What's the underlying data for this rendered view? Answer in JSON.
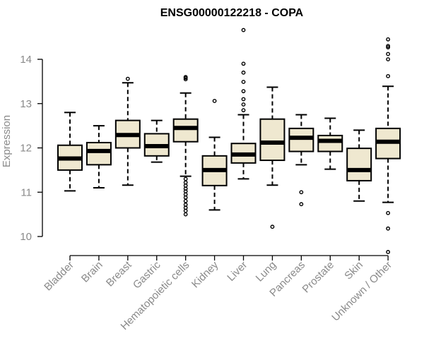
{
  "chart_data": {
    "type": "boxplot",
    "title": "ENSG00000122218 - COPA",
    "xlabel": "",
    "ylabel": "Expression",
    "ylim": [
      9.6,
      14.7
    ],
    "yticks": [
      "10",
      "11",
      "12",
      "13",
      "14"
    ],
    "grid": false,
    "colors": {
      "box_fill": "#efe8d0",
      "stroke": "#000000",
      "text": "#8a8a8a"
    },
    "categories": [
      "Bladder",
      "Brain",
      "Breast",
      "Gastric",
      "Hematopoietic cells",
      "Kidney",
      "Liver",
      "Lung",
      "Pancreas",
      "Prostate",
      "Skin",
      "Unknown / Other"
    ],
    "boxes": [
      {
        "whisker_low": 11.03,
        "q1": 11.5,
        "median": 11.76,
        "q3": 12.06,
        "whisker_high": 12.8,
        "outliers": []
      },
      {
        "whisker_low": 11.1,
        "q1": 11.62,
        "median": 11.93,
        "q3": 12.12,
        "whisker_high": 12.5,
        "outliers": []
      },
      {
        "whisker_low": 11.16,
        "q1": 12.0,
        "median": 12.29,
        "q3": 12.62,
        "whisker_high": 13.47,
        "outliers": [
          13.56
        ]
      },
      {
        "whisker_low": 11.68,
        "q1": 11.82,
        "median": 12.04,
        "q3": 12.32,
        "whisker_high": 12.62,
        "outliers": []
      },
      {
        "whisker_low": 11.36,
        "q1": 12.14,
        "median": 12.45,
        "q3": 12.65,
        "whisker_high": 13.24,
        "outliers": [
          13.55,
          13.58,
          13.6,
          11.3,
          11.22,
          11.15,
          11.08,
          11.02,
          10.95,
          10.88,
          10.8,
          10.72,
          10.65,
          10.58,
          10.5
        ]
      },
      {
        "whisker_low": 10.6,
        "q1": 11.15,
        "median": 11.5,
        "q3": 11.82,
        "whisker_high": 12.24,
        "outliers": [
          13.06
        ]
      },
      {
        "whisker_low": 11.3,
        "q1": 11.66,
        "median": 11.85,
        "q3": 12.1,
        "whisker_high": 12.75,
        "outliers": [
          12.85,
          12.98,
          13.1,
          13.28,
          13.49,
          13.7,
          13.9,
          14.66
        ]
      },
      {
        "whisker_low": 11.16,
        "q1": 11.72,
        "median": 12.12,
        "q3": 12.65,
        "whisker_high": 13.37,
        "outliers": [
          10.22
        ]
      },
      {
        "whisker_low": 11.62,
        "q1": 11.92,
        "median": 12.23,
        "q3": 12.44,
        "whisker_high": 12.75,
        "outliers": [
          11.0,
          10.73
        ]
      },
      {
        "whisker_low": 11.52,
        "q1": 11.92,
        "median": 12.16,
        "q3": 12.28,
        "whisker_high": 12.67,
        "outliers": []
      },
      {
        "whisker_low": 10.8,
        "q1": 11.26,
        "median": 11.5,
        "q3": 11.99,
        "whisker_high": 12.4,
        "outliers": []
      },
      {
        "whisker_low": 10.77,
        "q1": 11.76,
        "median": 12.14,
        "q3": 12.44,
        "whisker_high": 13.39,
        "outliers": [
          13.62,
          14.0,
          14.12,
          14.27,
          14.3,
          14.45,
          10.53,
          10.18,
          9.65
        ]
      }
    ]
  }
}
